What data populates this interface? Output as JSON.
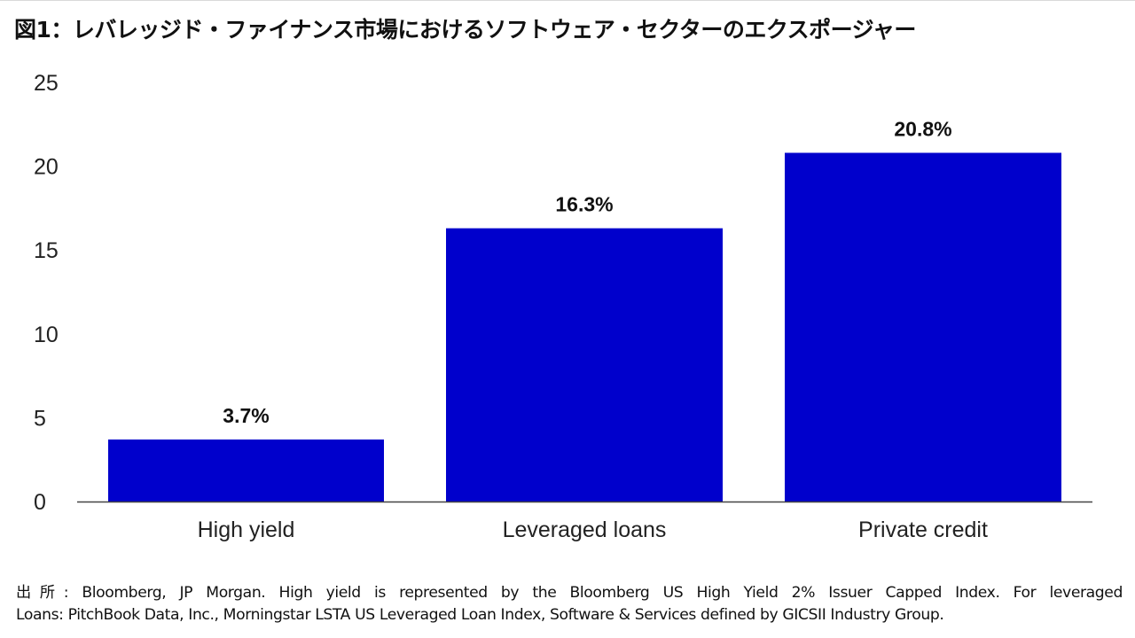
{
  "title": "図1：レバレッジド・ファイナンス市場におけるソフトウェア・セクターのエクスポージャー",
  "source": {
    "line1": "出所: Bloomberg, JP Morgan. High yield is represented by the Bloomberg US High Yield 2% Issuer Capped Index. For leveraged",
    "line2": "Loans: PitchBook Data, Inc., Morningstar LSTA US Leveraged Loan Index, Software & Services defined by GICSII Industry Group."
  },
  "chart_data": {
    "type": "bar",
    "categories": [
      "High yield",
      "Leveraged loans",
      "Private credit"
    ],
    "values": [
      3.7,
      16.3,
      20.8
    ],
    "data_labels": [
      "3.7%",
      "16.3%",
      "20.8%"
    ],
    "ylim": [
      0,
      25
    ],
    "yticks": [
      0,
      5,
      10,
      15,
      20,
      25
    ],
    "grid": false,
    "legend": "none",
    "bar_color": "#0000cc"
  }
}
